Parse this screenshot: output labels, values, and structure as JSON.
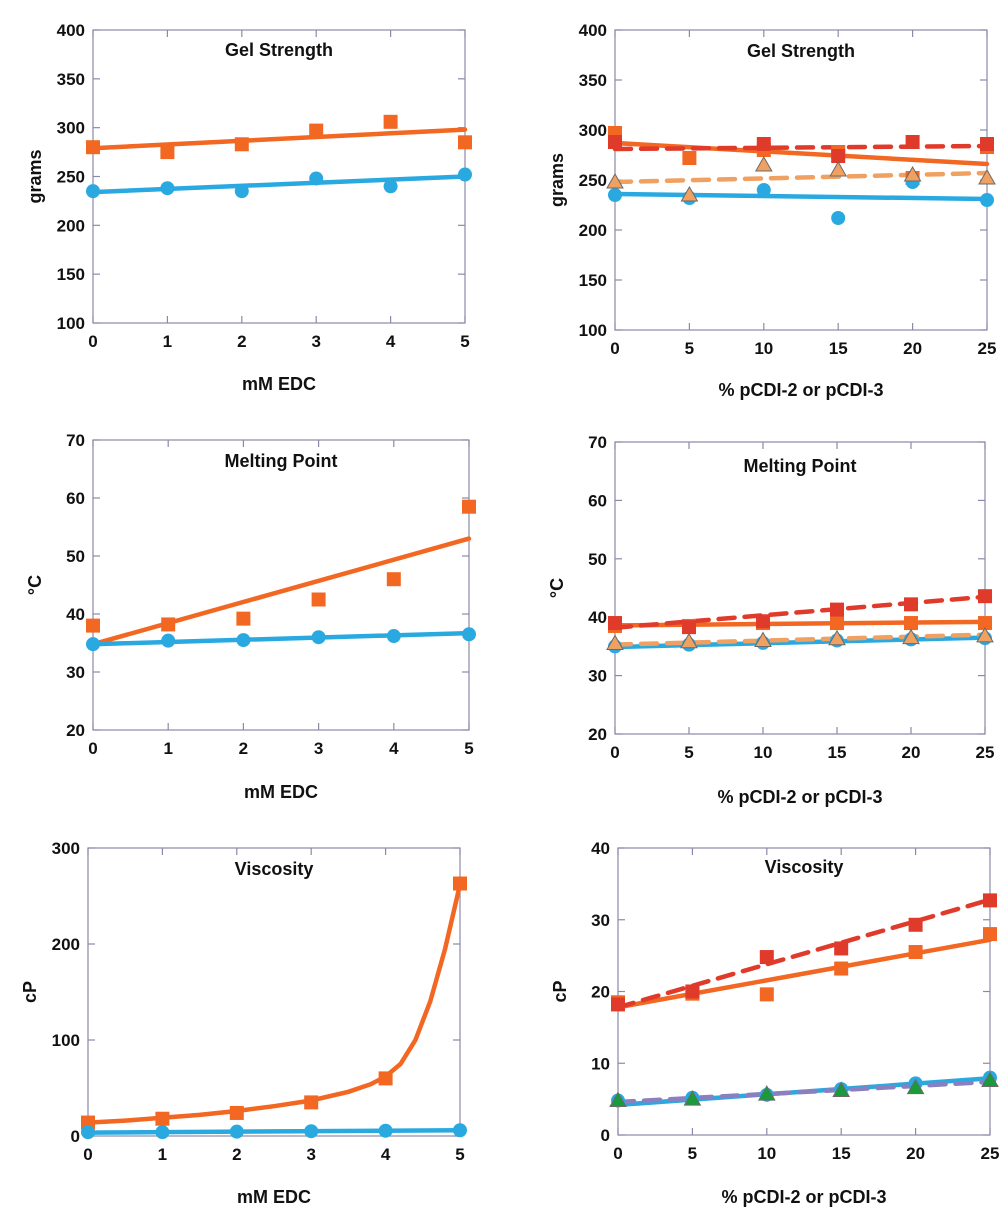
{
  "colors": {
    "orange": "#f26722",
    "red": "#e03a2a",
    "blue": "#29a9e0",
    "green": "#1a9a3a",
    "purple": "#8a80c0",
    "frame": "#8a8aa8"
  },
  "chart_data": [
    {
      "type": "scatter",
      "title": "Gel Strength",
      "xlabel": "mM EDC",
      "ylabel": "grams",
      "xlim": [
        0,
        5
      ],
      "ylim": [
        100,
        400
      ],
      "xticks": [
        0,
        1,
        2,
        3,
        4,
        5
      ],
      "yticks": [
        100,
        150,
        200,
        250,
        300,
        350,
        400
      ],
      "series": [
        {
          "marker": "square",
          "color": "#f26722",
          "x": [
            0,
            1,
            2,
            3,
            4,
            5
          ],
          "y": [
            280,
            275,
            283,
            297,
            306,
            285
          ],
          "fit": {
            "style": "solid",
            "line": [
              [
                0,
                279
              ],
              [
                5,
                298
              ]
            ]
          }
        },
        {
          "marker": "circle",
          "color": "#29a9e0",
          "x": [
            0,
            1,
            2,
            3,
            4,
            5
          ],
          "y": [
            235,
            238,
            235,
            248,
            240,
            252
          ],
          "fit": {
            "style": "solid",
            "line": [
              [
                0,
                234
              ],
              [
                5,
                250
              ]
            ]
          }
        }
      ]
    },
    {
      "type": "scatter",
      "title": "Gel Strength",
      "xlabel": "% pCDI-2 or pCDI-3",
      "ylabel": "grams",
      "xlim": [
        0,
        25
      ],
      "ylim": [
        100,
        400
      ],
      "xticks": [
        0,
        5,
        10,
        15,
        20,
        25
      ],
      "yticks": [
        100,
        150,
        200,
        250,
        300,
        350,
        400
      ],
      "series": [
        {
          "marker": "square",
          "color": "#f26722",
          "x": [
            0,
            5,
            10,
            15,
            20,
            25
          ],
          "y": [
            297,
            272,
            280,
            278,
            252,
            283
          ],
          "fit": {
            "style": "solid",
            "line": [
              [
                0,
                287
              ],
              [
                25,
                266
              ]
            ]
          }
        },
        {
          "marker": "square",
          "color": "#e03a2a",
          "x": [
            0,
            10,
            15,
            20,
            25
          ],
          "y": [
            288,
            286,
            274,
            288,
            286
          ],
          "fit": {
            "style": "dashed",
            "line": [
              [
                0,
                281
              ],
              [
                25,
                284
              ]
            ]
          }
        },
        {
          "marker": "circle",
          "color": "#29a9e0",
          "x": [
            0,
            5,
            10,
            15,
            20,
            25
          ],
          "y": [
            235,
            232,
            240,
            212,
            248,
            230
          ],
          "fit": {
            "style": "solid",
            "line": [
              [
                0,
                236
              ],
              [
                25,
                231
              ]
            ]
          }
        },
        {
          "marker": "triangle",
          "color": "#f0a060",
          "x": [
            0,
            5,
            10,
            15,
            20,
            25
          ],
          "y": [
            248,
            235,
            265,
            260,
            255,
            252
          ],
          "fit": {
            "style": "dashed",
            "line": [
              [
                0,
                248
              ],
              [
                25,
                257
              ]
            ]
          }
        }
      ]
    },
    {
      "type": "scatter",
      "title": "Melting Point",
      "xlabel": "mM EDC",
      "ylabel": "°C",
      "xlim": [
        0,
        5
      ],
      "ylim": [
        20,
        70
      ],
      "xticks": [
        0,
        1,
        2,
        3,
        4,
        5
      ],
      "yticks": [
        20,
        30,
        40,
        50,
        60,
        70
      ],
      "series": [
        {
          "marker": "square",
          "color": "#f26722",
          "x": [
            0,
            1,
            2,
            3,
            4,
            5
          ],
          "y": [
            38,
            38.2,
            39.2,
            42.5,
            46,
            58.5
          ],
          "fit": {
            "style": "solid",
            "line": [
              [
                0,
                34.8
              ],
              [
                5,
                53
              ]
            ]
          }
        },
        {
          "marker": "circle",
          "color": "#29a9e0",
          "x": [
            0,
            1,
            2,
            3,
            4,
            5
          ],
          "y": [
            34.8,
            35.4,
            35.5,
            36,
            36.2,
            36.5
          ],
          "fit": {
            "style": "solid",
            "line": [
              [
                0,
                34.8
              ],
              [
                5,
                36.7
              ]
            ]
          }
        }
      ]
    },
    {
      "type": "scatter",
      "title": "Melting Point",
      "xlabel": "% pCDI-2 or pCDI-3",
      "ylabel": "°C",
      "xlim": [
        0,
        25
      ],
      "ylim": [
        20,
        70
      ],
      "xticks": [
        0,
        5,
        10,
        15,
        20,
        25
      ],
      "yticks": [
        20,
        30,
        40,
        50,
        60,
        70
      ],
      "series": [
        {
          "marker": "square",
          "color": "#f26722",
          "x": [
            0,
            5,
            10,
            15,
            20,
            25
          ],
          "y": [
            38.5,
            38.5,
            39,
            39,
            39,
            39
          ],
          "fit": {
            "style": "solid",
            "line": [
              [
                0,
                38.6
              ],
              [
                25,
                39.2
              ]
            ]
          }
        },
        {
          "marker": "square",
          "color": "#e03a2a",
          "x": [
            0,
            5,
            10,
            15,
            20,
            25
          ],
          "y": [
            39,
            38.3,
            39.3,
            41.3,
            42.2,
            43.6
          ],
          "fit": {
            "style": "dashed",
            "line": [
              [
                0,
                38.2
              ],
              [
                25,
                43.5
              ]
            ]
          }
        },
        {
          "marker": "circle",
          "color": "#29a9e0",
          "x": [
            0,
            5,
            10,
            15,
            20,
            25
          ],
          "y": [
            35,
            35.3,
            35.6,
            36,
            36.2,
            36.4
          ],
          "fit": {
            "style": "solid",
            "line": [
              [
                0,
                34.9
              ],
              [
                25,
                36.5
              ]
            ]
          }
        },
        {
          "marker": "triangle",
          "color": "#f0a060",
          "x": [
            0,
            5,
            10,
            15,
            20,
            25
          ],
          "y": [
            35.5,
            35.8,
            36,
            36.3,
            36.5,
            36.8
          ],
          "fit": {
            "style": "dashed",
            "line": [
              [
                0,
                35.3
              ],
              [
                25,
                37
              ]
            ]
          }
        }
      ]
    },
    {
      "type": "scatter",
      "title": "Viscosity",
      "xlabel": "mM EDC",
      "ylabel": "cP",
      "xlim": [
        0,
        5
      ],
      "ylim": [
        0,
        300
      ],
      "xticks": [
        0,
        1,
        2,
        3,
        4,
        5
      ],
      "yticks": [
        0,
        100,
        200,
        300
      ],
      "series": [
        {
          "marker": "square",
          "color": "#f26722",
          "x": [
            0,
            1,
            2,
            3,
            4,
            5
          ],
          "y": [
            14,
            18,
            24,
            35,
            60,
            263
          ],
          "fit": {
            "style": "solid",
            "curve": [
              [
                0,
                14
              ],
              [
                0.5,
                16
              ],
              [
                1,
                19
              ],
              [
                1.5,
                22
              ],
              [
                2,
                26
              ],
              [
                2.5,
                31
              ],
              [
                3,
                37
              ],
              [
                3.5,
                46
              ],
              [
                3.8,
                54
              ],
              [
                4,
                62
              ],
              [
                4.2,
                75
              ],
              [
                4.4,
                100
              ],
              [
                4.6,
                140
              ],
              [
                4.8,
                195
              ],
              [
                5,
                262
              ]
            ]
          }
        },
        {
          "marker": "circle",
          "color": "#29a9e0",
          "x": [
            0,
            1,
            2,
            3,
            4,
            5
          ],
          "y": [
            4,
            4,
            4.5,
            5,
            5.5,
            6
          ],
          "fit": {
            "style": "solid",
            "line": [
              [
                0,
                3.5
              ],
              [
                5,
                6
              ]
            ]
          }
        }
      ]
    },
    {
      "type": "scatter",
      "title": "Viscosity",
      "xlabel": "% pCDI-2 or pCDI-3",
      "ylabel": "cP",
      "xlim": [
        0,
        25
      ],
      "ylim": [
        0,
        40
      ],
      "xticks": [
        0,
        5,
        10,
        15,
        20,
        25
      ],
      "yticks": [
        0,
        10,
        20,
        30,
        40
      ],
      "series": [
        {
          "marker": "square",
          "color": "#f26722",
          "x": [
            0,
            5,
            10,
            15,
            20,
            25
          ],
          "y": [
            18.5,
            19.7,
            19.6,
            23.2,
            25.5,
            28
          ],
          "fit": {
            "style": "solid",
            "line": [
              [
                0,
                17.8
              ],
              [
                25,
                27.2
              ]
            ]
          }
        },
        {
          "marker": "square",
          "color": "#e03a2a",
          "x": [
            0,
            5,
            10,
            15,
            20,
            25
          ],
          "y": [
            18.2,
            20,
            24.8,
            26,
            29.3,
            32.7
          ],
          "fit": {
            "style": "dashed",
            "line": [
              [
                0,
                17.8
              ],
              [
                25,
                32.8
              ]
            ]
          }
        },
        {
          "marker": "circle",
          "color": "#29a9e0",
          "x": [
            0,
            5,
            10,
            15,
            20,
            25
          ],
          "y": [
            4.8,
            5.2,
            5.6,
            6.4,
            7.2,
            8
          ],
          "fit": {
            "style": "solid",
            "line": [
              [
                0,
                4.2
              ],
              [
                25,
                7.9
              ]
            ]
          }
        },
        {
          "marker": "triangle",
          "color": "#1a9a3a",
          "x": [
            0,
            5,
            10,
            15,
            20,
            25
          ],
          "y": [
            4.8,
            5,
            5.7,
            6.2,
            6.6,
            7.6
          ],
          "fit": {
            "style": "dashed",
            "line": [
              [
                0,
                4.6
              ],
              [
                25,
                7.4
              ]
            ],
            "color": "#8a80c0"
          }
        }
      ]
    }
  ]
}
